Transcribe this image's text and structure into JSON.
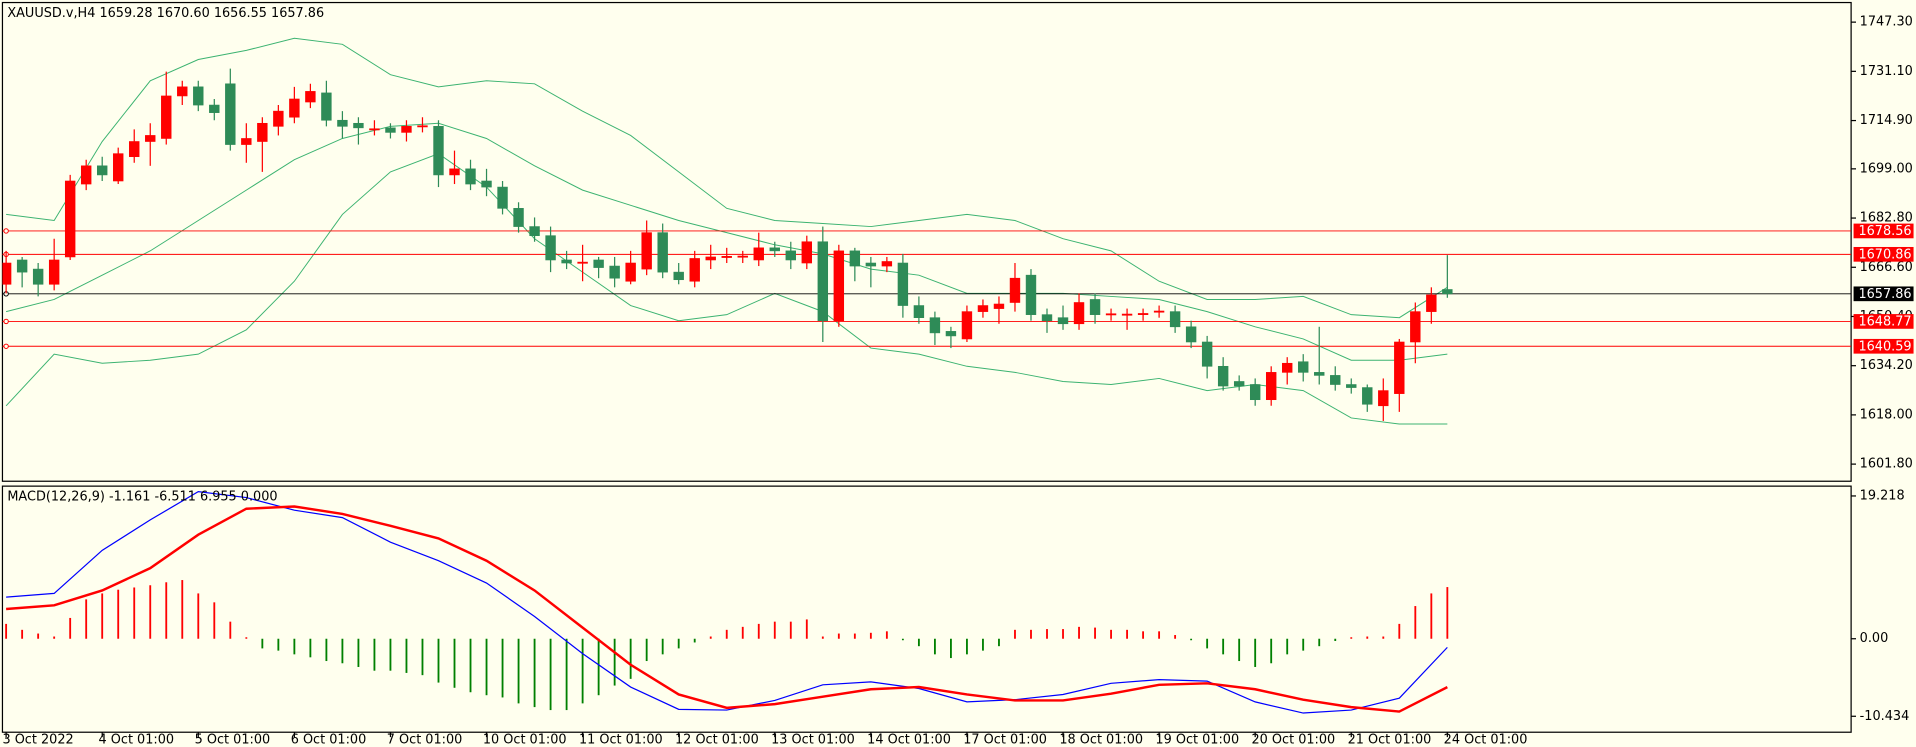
{
  "chart_data": [
    {
      "type": "candlestick",
      "title": "XAUUSD.v,H4  1659.28 1670.60 1656.55 1657.86",
      "categories": [
        "3 Oct 2022",
        null,
        null,
        null,
        null,
        null,
        "4 Oct 01:00",
        null,
        null,
        null,
        null,
        null,
        "5 Oct 01:00",
        null,
        null,
        null,
        null,
        null,
        "6 Oct 01:00",
        null,
        null,
        null,
        null,
        null,
        "7 Oct 01:00",
        null,
        null,
        null,
        null,
        null,
        "10 Oct 01:00",
        null,
        null,
        null,
        null,
        null,
        "11 Oct 01:00",
        null,
        null,
        null,
        null,
        null,
        "12 Oct 01:00",
        null,
        null,
        null,
        null,
        null,
        "13 Oct 01:00",
        null,
        null,
        null,
        null,
        null,
        "14 Oct 01:00",
        null,
        null,
        null,
        null,
        null,
        "17 Oct 01:00",
        null,
        null,
        null,
        null,
        null,
        "18 Oct 01:00",
        null,
        null,
        null,
        null,
        null,
        "19 Oct 01:00",
        null,
        null,
        null,
        null,
        null,
        "20 Oct 01:00",
        null,
        null,
        null,
        null,
        null,
        "21 Oct 01:00",
        null,
        null,
        null,
        null,
        null,
        "24 Oct 01:00"
      ],
      "open": [
        1661,
        1669,
        1666,
        1661,
        1670,
        1694,
        1700,
        1695,
        1703,
        1708,
        1709,
        1723,
        1726,
        1720,
        1727,
        1707,
        1708,
        1713,
        1716,
        1721,
        1724,
        1715,
        1714,
        1712,
        1712.5,
        1711,
        1713,
        1713,
        1697,
        1699,
        1695,
        1693,
        1686,
        1680,
        1677,
        1669,
        1668,
        1669,
        1667,
        1662,
        1666,
        1678,
        1665,
        1662,
        1669,
        1670,
        1670,
        1669,
        1673,
        1672,
        1668,
        1675,
        1649,
        1672,
        1668,
        1667,
        1668,
        1654,
        1650,
        1645.5,
        1643,
        1652,
        1653,
        1655,
        1664,
        1651,
        1650,
        1648,
        1656,
        1651,
        1651,
        1651,
        1652,
        1652,
        1647,
        1642,
        1634,
        1629,
        1628,
        1623,
        1632,
        1635.5,
        1632,
        1631,
        1628,
        1627,
        1621,
        1625,
        1642,
        1652,
        1659.28
      ],
      "high": [
        1672,
        1670,
        1668,
        1676,
        1697,
        1702,
        1703,
        1706,
        1712,
        1714,
        1731,
        1728,
        1728,
        1722,
        1732,
        1714,
        1716,
        1720,
        1726,
        1727,
        1728,
        1718,
        1716,
        1715,
        1714,
        1715,
        1716,
        1715,
        1705,
        1702,
        1699,
        1695,
        1688,
        1683,
        1680,
        1672,
        1674,
        1670,
        1670,
        1672,
        1682,
        1681,
        1668,
        1672,
        1674,
        1673,
        1672,
        1678,
        1675,
        1675,
        1677,
        1680,
        1674,
        1673,
        1670,
        1670,
        1671,
        1657,
        1652,
        1647,
        1654,
        1656,
        1657,
        1668,
        1666,
        1653,
        1654,
        1658,
        1658,
        1653,
        1653,
        1653,
        1654,
        1654,
        1649,
        1644,
        1637,
        1631,
        1630,
        1634,
        1637,
        1638,
        1647,
        1634,
        1630,
        1628,
        1630,
        1643,
        1655,
        1660,
        1670.6
      ],
      "low": [
        1658,
        1660,
        1657,
        1659,
        1669,
        1692,
        1695,
        1694,
        1701,
        1700,
        1707,
        1720,
        1718,
        1715,
        1705,
        1701,
        1698,
        1710,
        1714,
        1719,
        1713,
        1709,
        1707,
        1710,
        1709,
        1708,
        1711,
        1693,
        1694,
        1692,
        1690,
        1684,
        1678,
        1675,
        1665,
        1666,
        1662,
        1663,
        1660,
        1661,
        1664,
        1663,
        1661,
        1660,
        1666,
        1668,
        1668,
        1667,
        1670,
        1666,
        1666,
        1642,
        1647,
        1662,
        1660,
        1665,
        1650,
        1648,
        1641,
        1640,
        1642,
        1650,
        1648,
        1652,
        1649,
        1645,
        1646,
        1646,
        1648,
        1649,
        1646,
        1649,
        1650,
        1645,
        1640,
        1630,
        1626,
        1626,
        1621,
        1621,
        1628,
        1629,
        1628,
        1626,
        1625,
        1619,
        1616,
        1619,
        1635,
        1648,
        1656.55
      ],
      "close": [
        1668,
        1665,
        1661,
        1669,
        1695,
        1700,
        1697,
        1704,
        1708,
        1710,
        1723,
        1726,
        1720,
        1717.5,
        1707,
        1709,
        1714,
        1718,
        1722,
        1724.5,
        1715,
        1713,
        1712.5,
        1712.2,
        1711,
        1713,
        1713.2,
        1697,
        1699,
        1694,
        1693,
        1686,
        1680,
        1677,
        1669,
        1668,
        1668.3,
        1666.5,
        1663,
        1668,
        1678,
        1665,
        1662.5,
        1669.5,
        1670,
        1670.2,
        1670.3,
        1673,
        1672,
        1669,
        1675,
        1649,
        1672,
        1667,
        1667,
        1668.5,
        1654,
        1650,
        1645,
        1644,
        1652,
        1654,
        1654.5,
        1663,
        1651,
        1649,
        1648,
        1655,
        1651,
        1651.3,
        1651.2,
        1651.4,
        1652.2,
        1647,
        1642,
        1634,
        1627.5,
        1627.5,
        1623,
        1632,
        1635,
        1632,
        1631,
        1628,
        1627,
        1621.5,
        1626,
        1642,
        1652,
        1657.5,
        1657.86
      ],
      "up_color": "#ff0000",
      "down_color": "#2e8b57",
      "bands": [
        {
          "color": "#3cb371",
          "x": [
            0,
            3,
            6,
            9,
            12,
            15,
            18,
            21,
            24,
            27,
            30,
            33,
            36,
            39,
            42,
            45,
            48,
            51,
            54,
            57,
            60,
            63,
            66,
            69,
            72,
            75,
            78,
            81,
            84,
            87,
            90
          ],
          "values": [
            1684,
            1682,
            1708,
            1728,
            1735,
            1738,
            1742,
            1740,
            1730,
            1726,
            1728,
            1727,
            1718,
            1710,
            1698,
            1686,
            1682,
            1681,
            1680,
            1682,
            1684,
            1682,
            1676,
            1672,
            1662,
            1656,
            1656,
            1657,
            1651,
            1650,
            1660
          ]
        },
        {
          "color": "#3cb371",
          "x": [
            0,
            3,
            6,
            9,
            12,
            15,
            18,
            21,
            24,
            27,
            30,
            33,
            36,
            39,
            42,
            45,
            48,
            51,
            54,
            57,
            60,
            63,
            66,
            69,
            72,
            75,
            78,
            81,
            84,
            87,
            90
          ],
          "values": [
            1652,
            1656,
            1664,
            1672,
            1682,
            1692,
            1702,
            1709,
            1713,
            1714,
            1709,
            1700,
            1692,
            1687,
            1682,
            1678,
            1674,
            1671,
            1666,
            1664,
            1658,
            1658,
            1658,
            1657,
            1656,
            1652,
            1647,
            1643,
            1636,
            1636,
            1638
          ]
        },
        {
          "color": "#3cb371",
          "x": [
            0,
            3,
            6,
            9,
            12,
            15,
            18,
            21,
            24,
            27,
            30,
            33,
            36,
            39,
            42,
            45,
            48,
            51,
            54,
            57,
            60,
            63,
            66,
            69,
            72,
            75,
            78,
            81,
            84,
            87,
            90
          ],
          "values": [
            1621,
            1638,
            1635,
            1636,
            1638,
            1646,
            1662,
            1684,
            1698,
            1704,
            1693,
            1676,
            1665,
            1654,
            1649,
            1651,
            1658,
            1652,
            1640,
            1638,
            1634,
            1632,
            1629,
            1628,
            1630,
            1626,
            1628,
            1626,
            1617,
            1615,
            1615
          ]
        }
      ],
      "hlines": [
        {
          "value": 1678.56,
          "color": "#ff0000"
        },
        {
          "value": 1670.86,
          "color": "#ff0000"
        },
        {
          "value": 1657.86,
          "color": "#000000"
        },
        {
          "value": 1648.77,
          "color": "#ff0000"
        },
        {
          "value": 1640.59,
          "color": "#ff0000"
        }
      ],
      "ylim": [
        1596.16,
        1753.75
      ],
      "yticks": [
        {
          "value": 1747.3,
          "label": "1747.30"
        },
        {
          "value": 1731.1,
          "label": "1731.10"
        },
        {
          "value": 1714.9,
          "label": "1714.90"
        },
        {
          "value": 1699,
          "label": "1699.00"
        },
        {
          "value": 1682.8,
          "label": "1682.80"
        },
        {
          "value": 1666.6,
          "label": "1666.60"
        },
        {
          "value": 1650.4,
          "label": "1650.40"
        },
        {
          "value": 1634.2,
          "label": "1634.20"
        },
        {
          "value": 1618,
          "label": "1618.00"
        },
        {
          "value": 1601.8,
          "label": "1601.80"
        }
      ],
      "grid": false
    },
    {
      "type": "macd",
      "title": "MACD(12,26,9) -1.161 -6.511 6.955 0.000",
      "histogram": [
        2,
        1.2,
        0.7,
        0.3,
        2.8,
        5.3,
        6.1,
        6.6,
        6.9,
        7.2,
        7.6,
        7.9,
        6.1,
        4.9,
        2.3,
        0.2,
        -1.3,
        -1.6,
        -2.1,
        -2.5,
        -3,
        -3.3,
        -3.8,
        -4.3,
        -4.3,
        -4.6,
        -4.9,
        -5.9,
        -6.6,
        -7.2,
        -7.6,
        -7.9,
        -8.7,
        -9.2,
        -9.6,
        -9.6,
        -8.7,
        -7.6,
        -6.3,
        -5.4,
        -3,
        -2.1,
        -1.3,
        -0.5,
        0.3,
        1.2,
        1.6,
        2,
        2.3,
        2.3,
        2.6,
        0.3,
        0.7,
        0.7,
        0.8,
        1,
        -0.2,
        -1,
        -2.1,
        -2.6,
        -2.1,
        -1.6,
        -1,
        1.2,
        1.2,
        1.3,
        1.3,
        1.6,
        1.5,
        1.2,
        1.2,
        1,
        1,
        0.5,
        -0.2,
        -1.3,
        -2.1,
        -3,
        -3.8,
        -3.3,
        -2.1,
        -1.6,
        -1,
        -0.3,
        0.2,
        0.3,
        0.3,
        2,
        4.4,
        6.1,
        6.955
      ],
      "pos_color": "#ff0000",
      "neg_color": "#008000",
      "lines": [
        {
          "color": "#0000ff",
          "width": 1,
          "x": [
            0,
            3,
            6,
            9,
            12,
            15,
            18,
            21,
            24,
            27,
            30,
            33,
            36,
            39,
            42,
            45,
            48,
            51,
            54,
            57,
            60,
            63,
            66,
            69,
            72,
            75,
            78,
            81,
            84,
            87,
            90
          ],
          "values": [
            5.6,
            6.1,
            11.9,
            16,
            19.8,
            19,
            17.3,
            16.3,
            13,
            10.5,
            7.5,
            3,
            -2,
            -6.5,
            -9.5,
            -9.6,
            -8.3,
            -6.2,
            -5.8,
            -6.7,
            -8.5,
            -8.2,
            -7.5,
            -6,
            -5.5,
            -5.7,
            -8.5,
            -10,
            -9.6,
            -8,
            -1.161
          ]
        },
        {
          "color": "#ff0000",
          "width": 2,
          "x": [
            0,
            3,
            6,
            9,
            12,
            15,
            18,
            21,
            24,
            27,
            30,
            33,
            36,
            39,
            42,
            45,
            48,
            51,
            54,
            57,
            60,
            63,
            66,
            69,
            72,
            75,
            78,
            81,
            84,
            87,
            90
          ],
          "values": [
            4,
            4.5,
            6.5,
            9.5,
            14,
            17.5,
            17.8,
            16.8,
            15.2,
            13.5,
            10.5,
            6.5,
            1.5,
            -3.5,
            -7.5,
            -9.3,
            -8.8,
            -7.8,
            -6.8,
            -6.5,
            -7.5,
            -8.3,
            -8.3,
            -7.4,
            -6.2,
            -6,
            -6.8,
            -8.2,
            -9.2,
            -9.8,
            -6.511
          ]
        }
      ],
      "ylim": [
        -12.58,
        20.54
      ],
      "yticks": [
        {
          "value": 19.218,
          "label": "19.218"
        },
        {
          "value": 0,
          "label": "0.00"
        },
        {
          "value": -10.434,
          "label": "-10.434"
        }
      ]
    }
  ]
}
